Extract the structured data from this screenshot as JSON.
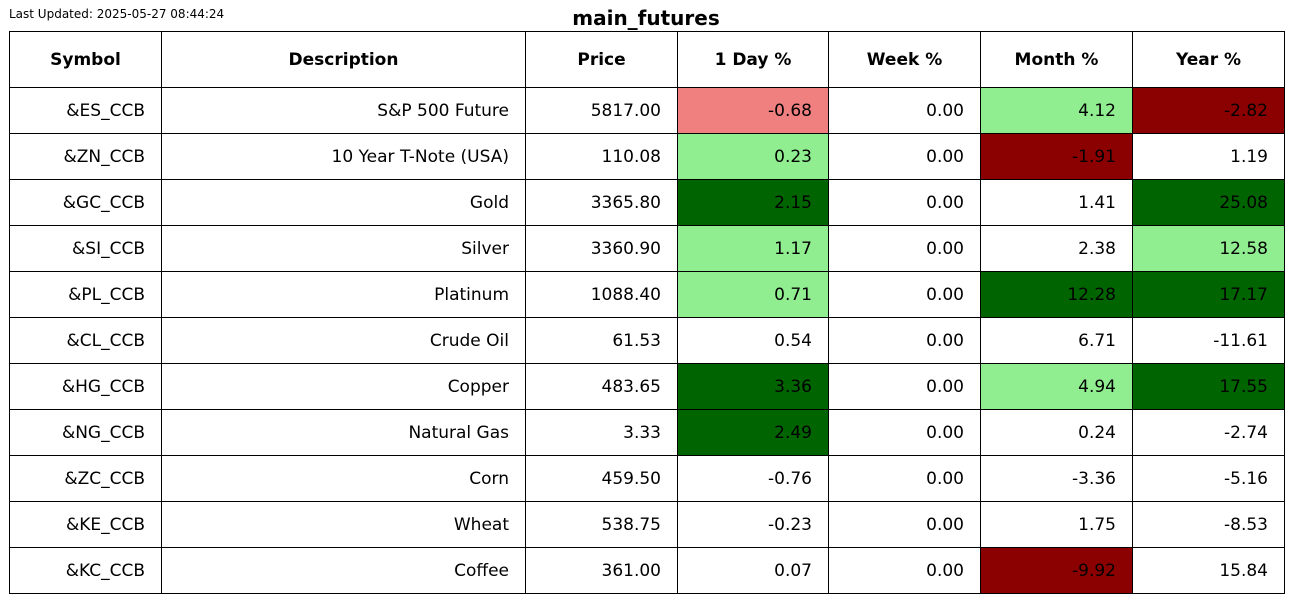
{
  "last_updated": "Last Updated: 2025-05-27 08:44:24",
  "title": "main_futures",
  "colors": {
    "neutral": "#ffffff",
    "light_green": "#90ee90",
    "dark_green": "#006400",
    "light_red": "#f08080",
    "dark_red": "#8b0000"
  },
  "chart_data": {
    "type": "table",
    "title": "main_futures",
    "columns": [
      "Symbol",
      "Description",
      "Price",
      "1 Day %",
      "Week %",
      "Month %",
      "Year %"
    ],
    "rows": [
      {
        "cells": [
          "&ES_CCB",
          "S&P 500 Future",
          "5817.00",
          "-0.68",
          "0.00",
          "4.12",
          "-2.82"
        ],
        "fills": [
          "neutral",
          "neutral",
          "neutral",
          "light_red",
          "neutral",
          "light_green",
          "dark_red"
        ]
      },
      {
        "cells": [
          "&ZN_CCB",
          "10 Year T-Note (USA)",
          "110.08",
          "0.23",
          "0.00",
          "-1.91",
          "1.19"
        ],
        "fills": [
          "neutral",
          "neutral",
          "neutral",
          "light_green",
          "neutral",
          "dark_red",
          "neutral"
        ]
      },
      {
        "cells": [
          "&GC_CCB",
          "Gold",
          "3365.80",
          "2.15",
          "0.00",
          "1.41",
          "25.08"
        ],
        "fills": [
          "neutral",
          "neutral",
          "neutral",
          "dark_green",
          "neutral",
          "neutral",
          "dark_green"
        ]
      },
      {
        "cells": [
          "&SI_CCB",
          "Silver",
          "3360.90",
          "1.17",
          "0.00",
          "2.38",
          "12.58"
        ],
        "fills": [
          "neutral",
          "neutral",
          "neutral",
          "light_green",
          "neutral",
          "neutral",
          "light_green"
        ]
      },
      {
        "cells": [
          "&PL_CCB",
          "Platinum",
          "1088.40",
          "0.71",
          "0.00",
          "12.28",
          "17.17"
        ],
        "fills": [
          "neutral",
          "neutral",
          "neutral",
          "light_green",
          "neutral",
          "dark_green",
          "dark_green"
        ]
      },
      {
        "cells": [
          "&CL_CCB",
          "Crude Oil",
          "61.53",
          "0.54",
          "0.00",
          "6.71",
          "-11.61"
        ],
        "fills": [
          "neutral",
          "neutral",
          "neutral",
          "neutral",
          "neutral",
          "neutral",
          "neutral"
        ]
      },
      {
        "cells": [
          "&HG_CCB",
          "Copper",
          "483.65",
          "3.36",
          "0.00",
          "4.94",
          "17.55"
        ],
        "fills": [
          "neutral",
          "neutral",
          "neutral",
          "dark_green",
          "neutral",
          "light_green",
          "dark_green"
        ]
      },
      {
        "cells": [
          "&NG_CCB",
          "Natural Gas",
          "3.33",
          "2.49",
          "0.00",
          "0.24",
          "-2.74"
        ],
        "fills": [
          "neutral",
          "neutral",
          "neutral",
          "dark_green",
          "neutral",
          "neutral",
          "neutral"
        ]
      },
      {
        "cells": [
          "&ZC_CCB",
          "Corn",
          "459.50",
          "-0.76",
          "0.00",
          "-3.36",
          "-5.16"
        ],
        "fills": [
          "neutral",
          "neutral",
          "neutral",
          "neutral",
          "neutral",
          "neutral",
          "neutral"
        ]
      },
      {
        "cells": [
          "&KE_CCB",
          "Wheat",
          "538.75",
          "-0.23",
          "0.00",
          "1.75",
          "-8.53"
        ],
        "fills": [
          "neutral",
          "neutral",
          "neutral",
          "neutral",
          "neutral",
          "neutral",
          "neutral"
        ]
      },
      {
        "cells": [
          "&KC_CCB",
          "Coffee",
          "361.00",
          "0.07",
          "0.00",
          "-9.92",
          "15.84"
        ],
        "fills": [
          "neutral",
          "neutral",
          "neutral",
          "neutral",
          "neutral",
          "dark_red",
          "neutral"
        ]
      }
    ]
  }
}
